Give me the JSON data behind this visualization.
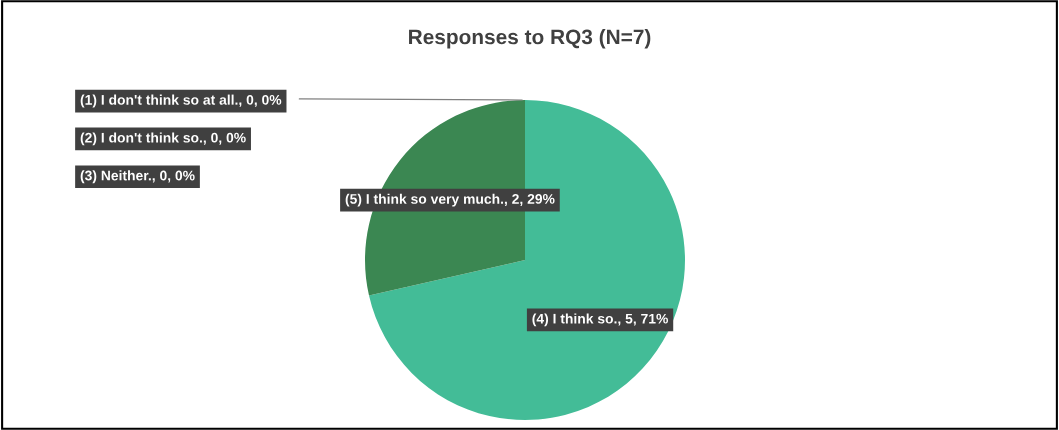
{
  "chart_data": {
    "type": "pie",
    "title": "Responses to RQ3 (N=7)",
    "categories": [
      "(1) I don't think so at all., 0, 0%",
      "(2) I don't think so., 0, 0%",
      "(3) Neither., 0, 0%",
      "(4) I think so., 5, 71%",
      "(5) I think so very much., 2, 29%"
    ],
    "values": [
      0,
      0,
      0,
      5,
      2
    ],
    "colors": [
      null,
      null,
      null,
      "#43bc97",
      "#3b8752"
    ]
  }
}
